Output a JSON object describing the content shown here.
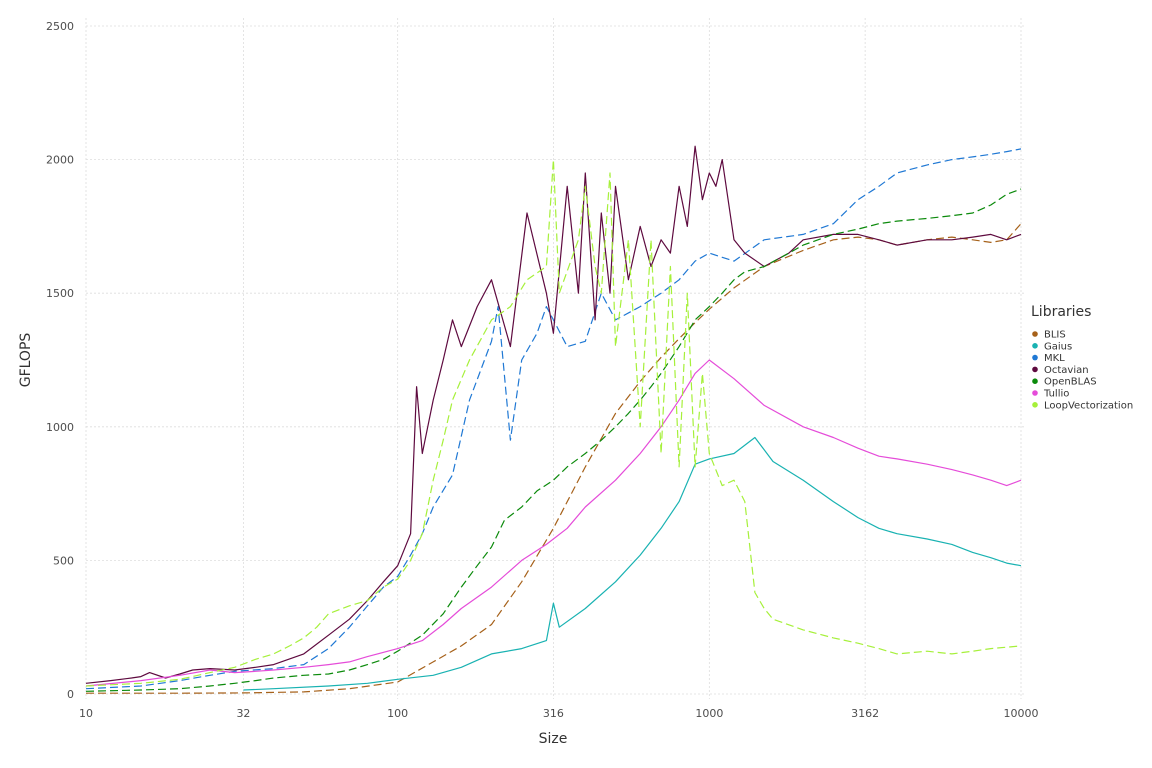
{
  "chart_data": {
    "type": "line",
    "title": "",
    "xlabel": "Size",
    "ylabel": "GFLOPS",
    "x_scale": "log10",
    "xlim": [
      10,
      10000
    ],
    "ylim": [
      0,
      2500
    ],
    "x_ticks": [
      10,
      32,
      100,
      316,
      1000,
      3162,
      10000
    ],
    "x_tick_labels": [
      "10",
      "32",
      "100",
      "316",
      "1000",
      "3162",
      "10000"
    ],
    "y_ticks": [
      0,
      500,
      1000,
      1500,
      2000,
      2500
    ],
    "y_tick_labels": [
      "0",
      "500",
      "1000",
      "1500",
      "2000",
      "2500"
    ],
    "grid": true,
    "legend": {
      "title": "Libraries",
      "position": "right"
    },
    "series": [
      {
        "name": "BLIS",
        "color": "#a6611a",
        "dash": "dashed",
        "x": [
          10,
          20,
          32,
          50,
          70,
          100,
          130,
          160,
          200,
          250,
          316,
          400,
          500,
          600,
          700,
          800,
          900,
          1000,
          1200,
          1500,
          2000,
          2500,
          3000,
          3500,
          4000,
          5000,
          6000,
          7000,
          8000,
          9000,
          10000
        ],
        "y": [
          3,
          3,
          4,
          8,
          20,
          45,
          120,
          180,
          260,
          420,
          620,
          850,
          1050,
          1170,
          1260,
          1330,
          1390,
          1440,
          1520,
          1600,
          1660,
          1700,
          1710,
          1700,
          1680,
          1700,
          1710,
          1700,
          1690,
          1700,
          1760
        ]
      },
      {
        "name": "Gaius",
        "color": "#19b2b2",
        "dash": "solid",
        "x": [
          32,
          40,
          60,
          80,
          100,
          130,
          160,
          200,
          250,
          300,
          316,
          330,
          400,
          500,
          600,
          700,
          800,
          900,
          1000,
          1200,
          1400,
          1600,
          2000,
          2500,
          3000,
          3500,
          4000,
          5000,
          6000,
          7000,
          8000,
          9000,
          10000
        ],
        "y": [
          15,
          20,
          30,
          40,
          55,
          70,
          100,
          150,
          170,
          200,
          340,
          250,
          320,
          420,
          520,
          620,
          720,
          860,
          880,
          900,
          960,
          870,
          800,
          720,
          660,
          620,
          600,
          580,
          560,
          530,
          510,
          490,
          480
        ]
      },
      {
        "name": "MKL",
        "color": "#1f78d4",
        "dash": "dashed",
        "x": [
          10,
          15,
          20,
          25,
          30,
          40,
          50,
          60,
          70,
          80,
          90,
          100,
          110,
          120,
          130,
          150,
          170,
          200,
          210,
          230,
          250,
          280,
          300,
          316,
          350,
          400,
          450,
          500,
          600,
          700,
          800,
          900,
          1000,
          1200,
          1500,
          2000,
          2500,
          3000,
          3500,
          4000,
          5000,
          6000,
          7000,
          8000,
          9000,
          10000
        ],
        "y": [
          20,
          30,
          50,
          70,
          85,
          95,
          110,
          170,
          250,
          330,
          400,
          440,
          520,
          600,
          700,
          820,
          1100,
          1320,
          1450,
          950,
          1250,
          1350,
          1450,
          1400,
          1300,
          1320,
          1500,
          1400,
          1450,
          1500,
          1550,
          1620,
          1650,
          1620,
          1700,
          1720,
          1760,
          1850,
          1900,
          1950,
          1980,
          2000,
          2010,
          2020,
          2030,
          2040
        ]
      },
      {
        "name": "Octavian",
        "color": "#5e0a3f",
        "dash": "solid",
        "x": [
          10,
          12,
          14,
          15,
          16,
          18,
          20,
          22,
          25,
          30,
          35,
          40,
          50,
          60,
          70,
          80,
          90,
          100,
          110,
          115,
          120,
          130,
          140,
          150,
          160,
          180,
          200,
          230,
          260,
          300,
          316,
          350,
          380,
          400,
          430,
          450,
          480,
          500,
          550,
          600,
          650,
          700,
          750,
          800,
          850,
          900,
          950,
          1000,
          1050,
          1100,
          1200,
          1300,
          1500,
          1800,
          2000,
          2500,
          3000,
          3500,
          4000,
          5000,
          6000,
          7000,
          8000,
          9000,
          10000
        ],
        "y": [
          40,
          50,
          60,
          65,
          80,
          60,
          75,
          90,
          95,
          90,
          100,
          110,
          150,
          220,
          280,
          350,
          420,
          480,
          600,
          1150,
          900,
          1100,
          1250,
          1400,
          1300,
          1450,
          1550,
          1300,
          1800,
          1500,
          1350,
          1900,
          1500,
          1950,
          1400,
          1800,
          1500,
          1900,
          1550,
          1750,
          1600,
          1700,
          1650,
          1900,
          1750,
          2050,
          1850,
          1950,
          1900,
          2000,
          1700,
          1650,
          1600,
          1650,
          1700,
          1720,
          1720,
          1700,
          1680,
          1700,
          1700,
          1710,
          1720,
          1700,
          1720
        ]
      },
      {
        "name": "OpenBLAS",
        "color": "#0b8a0b",
        "dash": "dashed",
        "x": [
          10,
          15,
          20,
          25,
          30,
          35,
          40,
          50,
          60,
          70,
          80,
          90,
          100,
          120,
          140,
          160,
          180,
          200,
          220,
          250,
          280,
          316,
          350,
          400,
          450,
          500,
          550,
          600,
          650,
          700,
          800,
          900,
          1000,
          1100,
          1200,
          1300,
          1500,
          1800,
          2000,
          2500,
          3000,
          3500,
          4000,
          5000,
          6000,
          7000,
          8000,
          9000,
          10000
        ],
        "y": [
          10,
          15,
          20,
          30,
          40,
          50,
          60,
          70,
          75,
          90,
          110,
          130,
          160,
          220,
          300,
          400,
          480,
          550,
          650,
          700,
          760,
          800,
          850,
          900,
          950,
          1000,
          1050,
          1100,
          1150,
          1200,
          1300,
          1400,
          1450,
          1500,
          1550,
          1580,
          1600,
          1650,
          1680,
          1720,
          1740,
          1760,
          1770,
          1780,
          1790,
          1800,
          1830,
          1870,
          1890
        ]
      },
      {
        "name": "Tullio",
        "color": "#e54cd9",
        "dash": "solid",
        "x": [
          10,
          15,
          20,
          25,
          30,
          35,
          40,
          50,
          60,
          70,
          80,
          100,
          120,
          140,
          160,
          200,
          250,
          300,
          350,
          400,
          500,
          600,
          700,
          800,
          900,
          1000,
          1200,
          1500,
          2000,
          2500,
          3000,
          3500,
          4000,
          5000,
          6000,
          7000,
          8000,
          9000,
          10000
        ],
        "y": [
          30,
          50,
          70,
          90,
          80,
          85,
          90,
          100,
          110,
          120,
          140,
          170,
          200,
          260,
          320,
          400,
          500,
          560,
          620,
          700,
          800,
          900,
          1000,
          1100,
          1200,
          1250,
          1180,
          1080,
          1000,
          960,
          920,
          890,
          880,
          860,
          840,
          820,
          800,
          780,
          800
        ]
      },
      {
        "name": "LoopVectorization",
        "color": "#a6f03a",
        "dash": "dashed",
        "x": [
          10,
          15,
          20,
          25,
          30,
          35,
          40,
          45,
          50,
          55,
          60,
          70,
          80,
          90,
          100,
          110,
          120,
          130,
          140,
          150,
          170,
          200,
          230,
          260,
          300,
          316,
          330,
          380,
          400,
          430,
          450,
          480,
          500,
          550,
          600,
          650,
          700,
          750,
          800,
          850,
          900,
          950,
          1000,
          1100,
          1200,
          1300,
          1400,
          1500,
          1600,
          2000,
          2500,
          3000,
          3500,
          4000,
          5000,
          6000,
          7000,
          8000,
          9000,
          10000
        ],
        "y": [
          30,
          40,
          55,
          80,
          100,
          130,
          150,
          180,
          210,
          250,
          300,
          330,
          350,
          400,
          430,
          500,
          600,
          800,
          950,
          1100,
          1250,
          1400,
          1450,
          1550,
          1600,
          2000,
          1500,
          1700,
          1900,
          1600,
          1500,
          1950,
          1300,
          1700,
          1000,
          1700,
          900,
          1600,
          850,
          1500,
          850,
          1200,
          900,
          780,
          800,
          720,
          380,
          320,
          280,
          240,
          210,
          190,
          170,
          150,
          160,
          150,
          160,
          170,
          175,
          180
        ]
      }
    ]
  }
}
